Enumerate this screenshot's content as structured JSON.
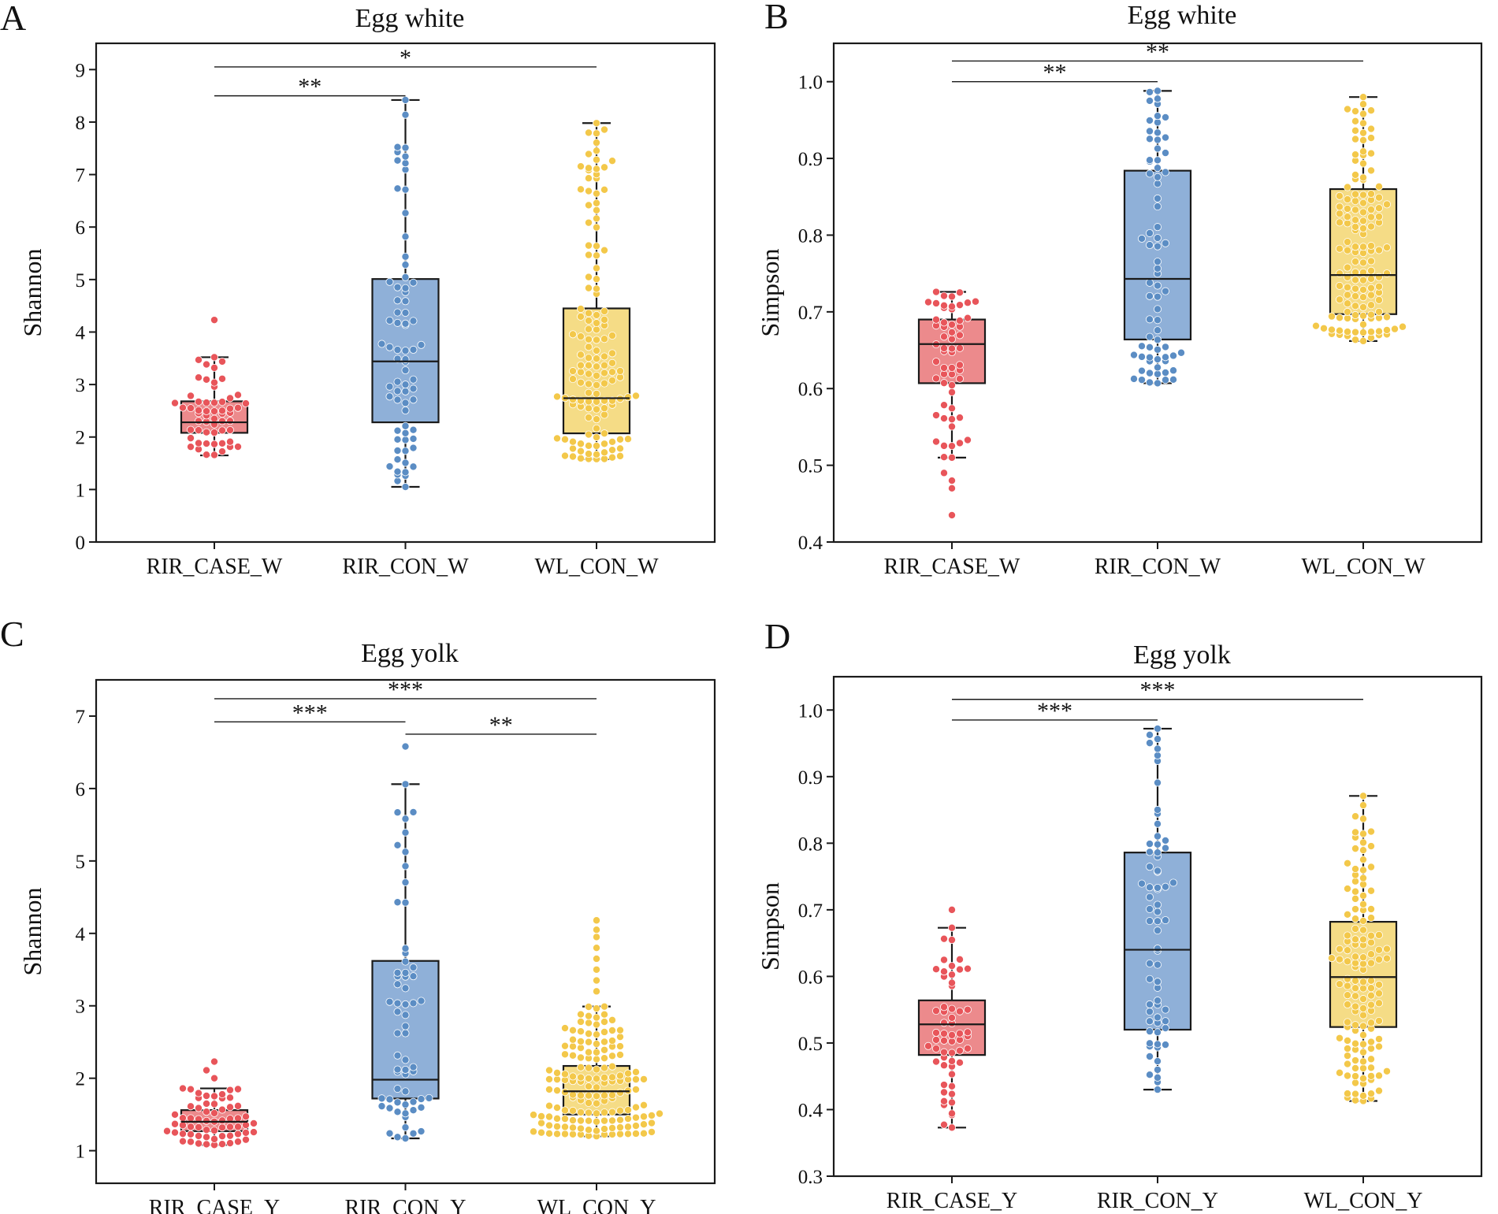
{
  "colors": {
    "red": "#e8555a",
    "blue": "#5b8dc4",
    "yellow": "#f3c84a",
    "red_fill": "#ec8a8c",
    "blue_fill": "#8fb0d8",
    "yellow_fill": "#f5dc86"
  },
  "chart_data": [
    {
      "panel": "A",
      "type": "box",
      "title": "Egg white",
      "ylabel": "Shannon",
      "ylim": [
        0,
        9.5
      ],
      "yticks": [
        0,
        1,
        2,
        3,
        4,
        5,
        6,
        7,
        8,
        9
      ],
      "categories": [
        "RIR_CASE_W",
        "RIR_CON_W",
        "WL_CON_W"
      ],
      "boxes": [
        {
          "min": 1.65,
          "q1": 2.08,
          "median": 2.28,
          "q3": 2.68,
          "max": 3.52,
          "n": 55,
          "outliers": [
            4.23
          ]
        },
        {
          "min": 1.05,
          "q1": 2.28,
          "median": 3.44,
          "q3": 5.01,
          "max": 8.42,
          "n": 70,
          "outliers": []
        },
        {
          "min": 1.58,
          "q1": 2.07,
          "median": 2.74,
          "q3": 4.45,
          "max": 7.98,
          "n": 130,
          "outliers": []
        }
      ],
      "significance": [
        {
          "from": 0,
          "to": 1,
          "y": 8.5,
          "label": "**"
        },
        {
          "from": 0,
          "to": 2,
          "y": 9.05,
          "label": "*"
        }
      ]
    },
    {
      "panel": "B",
      "type": "box",
      "title": "Egg white",
      "ylabel": "Simpson",
      "ylim": [
        0.4,
        1.05
      ],
      "yticks": [
        0.4,
        0.5,
        0.6,
        0.7,
        0.8,
        0.9,
        1.0
      ],
      "categories": [
        "RIR_CASE_W",
        "RIR_CON_W",
        "WL_CON_W"
      ],
      "boxes": [
        {
          "min": 0.51,
          "q1": 0.607,
          "median": 0.658,
          "q3": 0.69,
          "max": 0.726,
          "n": 55,
          "outliers": [
            0.435,
            0.47,
            0.48,
            0.49
          ]
        },
        {
          "min": 0.607,
          "q1": 0.664,
          "median": 0.743,
          "q3": 0.884,
          "max": 0.988,
          "n": 70,
          "outliers": []
        },
        {
          "min": 0.662,
          "q1": 0.697,
          "median": 0.748,
          "q3": 0.86,
          "max": 0.98,
          "n": 130,
          "outliers": []
        }
      ],
      "significance": [
        {
          "from": 0,
          "to": 1,
          "y": 1.0,
          "label": "**"
        },
        {
          "from": 0,
          "to": 2,
          "y": 1.027,
          "label": "**"
        }
      ]
    },
    {
      "panel": "C",
      "type": "box",
      "title": "Egg yolk",
      "ylabel": "Shannon",
      "ylim": [
        0.55,
        7.5
      ],
      "yticks": [
        1,
        2,
        3,
        4,
        5,
        6,
        7
      ],
      "categories": [
        "RIR_CASE_Y",
        "RIR_CON_Y",
        "WL_CON_Y"
      ],
      "boxes": [
        {
          "min": 1.08,
          "q1": 1.27,
          "median": 1.4,
          "q3": 1.56,
          "max": 1.86,
          "n": 60,
          "outliers": [
            2.0,
            2.11,
            2.23
          ]
        },
        {
          "min": 1.17,
          "q1": 1.72,
          "median": 1.98,
          "q3": 3.62,
          "max": 6.06,
          "n": 60,
          "outliers": [
            6.58
          ]
        },
        {
          "min": 1.2,
          "q1": 1.5,
          "median": 1.82,
          "q3": 2.17,
          "max": 2.99,
          "n": 150,
          "outliers": [
            3.2,
            3.35,
            3.5,
            3.65,
            3.8,
            3.95,
            4.05,
            4.18
          ]
        }
      ],
      "significance": [
        {
          "from": 0,
          "to": 1,
          "y": 6.92,
          "label": "***"
        },
        {
          "from": 1,
          "to": 2,
          "y": 6.75,
          "label": "**"
        },
        {
          "from": 0,
          "to": 2,
          "y": 7.24,
          "label": "***"
        }
      ]
    },
    {
      "panel": "D",
      "type": "box",
      "title": "Egg yolk",
      "ylabel": "Simpson",
      "ylim": [
        0.3,
        1.05
      ],
      "yticks": [
        0.3,
        0.4,
        0.5,
        0.6,
        0.7,
        0.8,
        0.9,
        1.0
      ],
      "categories": [
        "RIR_CASE_Y",
        "RIR_CON_Y",
        "WL_CON_Y"
      ],
      "boxes": [
        {
          "min": 0.373,
          "q1": 0.482,
          "median": 0.528,
          "q3": 0.564,
          "max": 0.673,
          "n": 55,
          "outliers": [
            0.7
          ]
        },
        {
          "min": 0.43,
          "q1": 0.52,
          "median": 0.64,
          "q3": 0.786,
          "max": 0.972,
          "n": 65,
          "outliers": []
        },
        {
          "min": 0.413,
          "q1": 0.524,
          "median": 0.599,
          "q3": 0.682,
          "max": 0.871,
          "n": 130,
          "outliers": []
        }
      ],
      "significance": [
        {
          "from": 0,
          "to": 1,
          "y": 0.985,
          "label": "***"
        },
        {
          "from": 0,
          "to": 2,
          "y": 1.016,
          "label": "***"
        }
      ]
    }
  ]
}
